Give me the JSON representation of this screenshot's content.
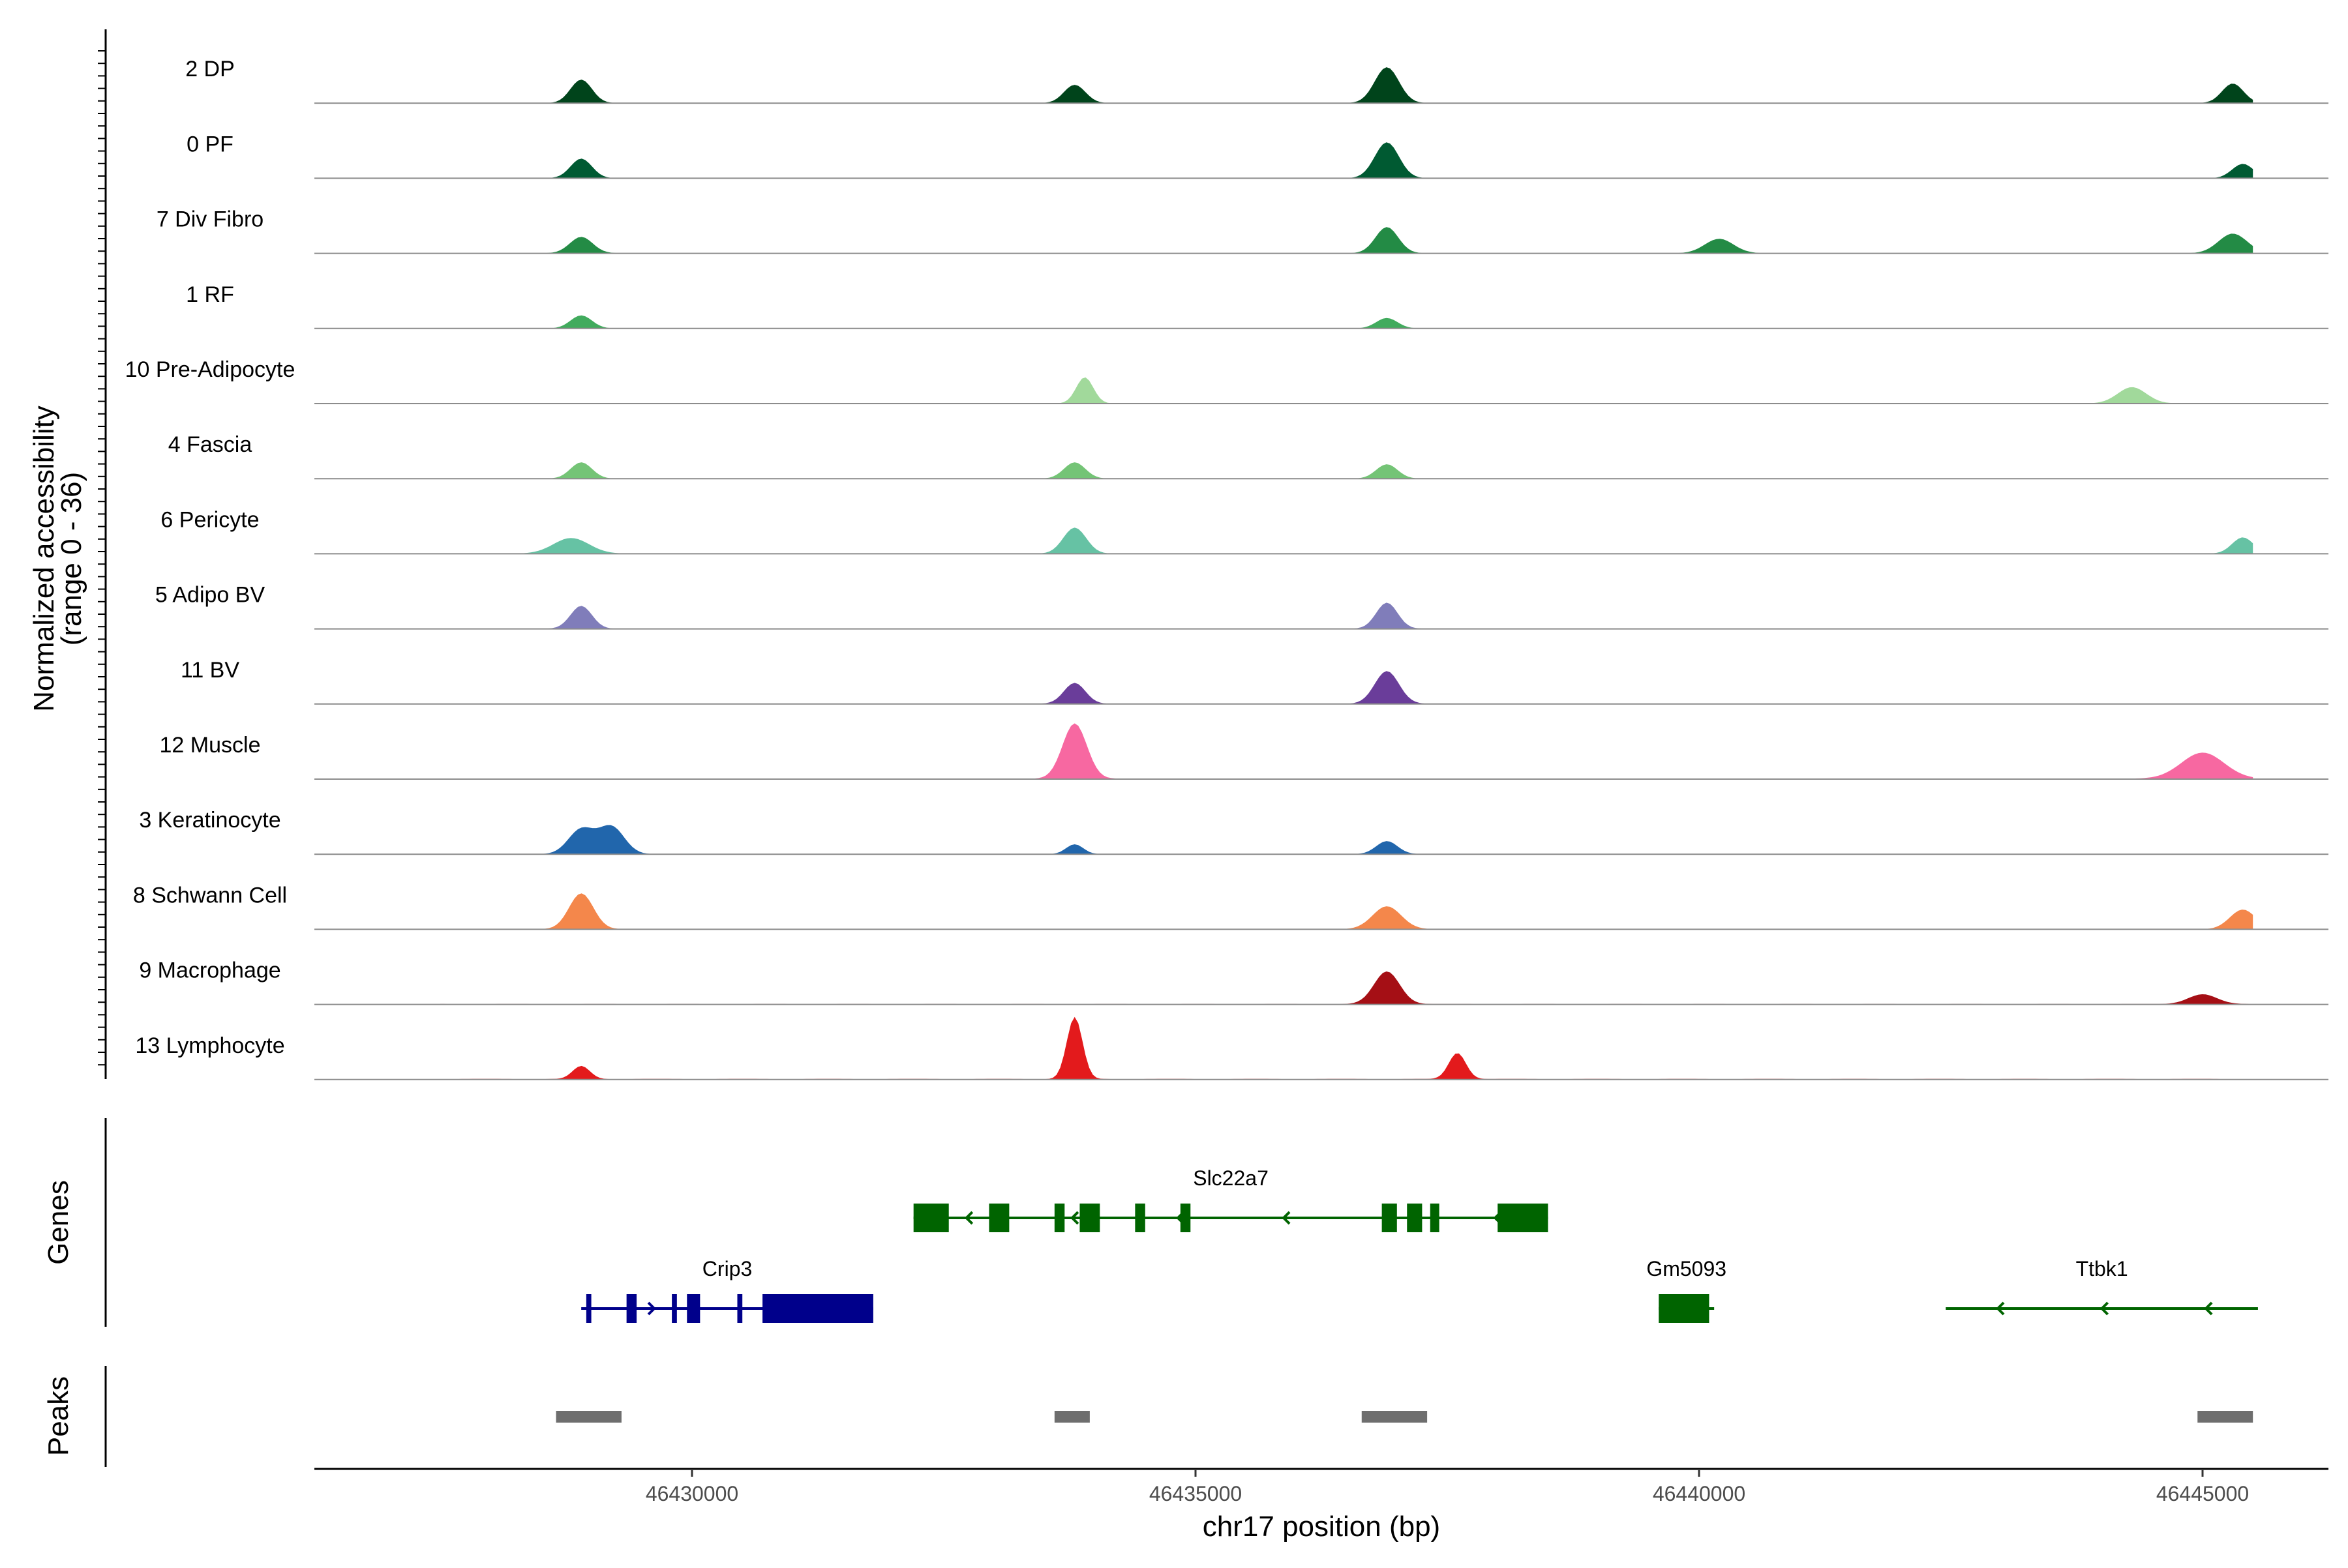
{
  "chart_data": {
    "type": "area",
    "chromosome": "chr17",
    "xlabel": "chr17 position (bp)",
    "xlim": [
      46426250,
      46446250
    ],
    "x_ticks": [
      46430000,
      46435000,
      46440000,
      46445000
    ],
    "x_tick_labels": [
      "46430000",
      "46435000",
      "46440000",
      "46445000"
    ],
    "coverage_ylabel_line1": "Normalized accessibility",
    "coverage_ylabel_line2": "(range 0 - 36)",
    "y_range": [
      0,
      36
    ],
    "region": [
      46427500,
      46445500
    ],
    "tracks": [
      {
        "name": "2 DP",
        "color": "#00441b",
        "baseline": 0.15,
        "peaks": [
          [
            46428900,
            36,
            150
          ],
          [
            46433800,
            28,
            150
          ],
          [
            46436900,
            55,
            170
          ],
          [
            46445300,
            30,
            150
          ]
        ]
      },
      {
        "name": "0 PF",
        "color": "#005a32",
        "baseline": 0.12,
        "peaks": [
          [
            46428900,
            30,
            150
          ],
          [
            46436900,
            55,
            170
          ],
          [
            46445400,
            22,
            150
          ]
        ]
      },
      {
        "name": "7 Div Fibro",
        "color": "#238b45",
        "baseline": 0.35,
        "peaks": [
          [
            46428900,
            25,
            160
          ],
          [
            46436900,
            40,
            160
          ],
          [
            46440200,
            22,
            200
          ],
          [
            46445300,
            30,
            200
          ]
        ]
      },
      {
        "name": "1 RF",
        "color": "#41ab5d",
        "baseline": 0.08,
        "peaks": [
          [
            46428900,
            20,
            150
          ],
          [
            46436900,
            16,
            150
          ]
        ]
      },
      {
        "name": "10 Pre-Adipocyte",
        "color": "#a1d99b",
        "baseline": 0.3,
        "peaks": [
          [
            46433900,
            40,
            120
          ],
          [
            46444300,
            25,
            200
          ]
        ]
      },
      {
        "name": "4 Fascia",
        "color": "#74c476",
        "baseline": 0.15,
        "peaks": [
          [
            46428900,
            25,
            150
          ],
          [
            46433800,
            25,
            150
          ],
          [
            46436900,
            22,
            150
          ]
        ]
      },
      {
        "name": "6 Pericyte",
        "color": "#66c2a4",
        "baseline": 0.25,
        "peaks": [
          [
            46428800,
            24,
            250
          ],
          [
            46433800,
            40,
            160
          ],
          [
            46445400,
            25,
            150
          ]
        ]
      },
      {
        "name": "5 Adipo BV",
        "color": "#807dba",
        "baseline": 0.35,
        "peaks": [
          [
            46428900,
            35,
            150
          ],
          [
            46436900,
            40,
            150
          ]
        ]
      },
      {
        "name": "11 BV",
        "color": "#6a3d9a",
        "baseline": 0.5,
        "peaks": [
          [
            46433800,
            32,
            150
          ],
          [
            46436900,
            50,
            170
          ]
        ]
      },
      {
        "name": "12 Muscle",
        "color": "#f768a1",
        "baseline": 0.7,
        "peaks": [
          [
            46433800,
            85,
            170
          ],
          [
            46445000,
            40,
            300
          ]
        ]
      },
      {
        "name": "3 Keratinocyte",
        "color": "#2166ac",
        "baseline": 0.2,
        "peaks": [
          [
            46428900,
            38,
            180
          ],
          [
            46429200,
            42,
            180
          ],
          [
            46433800,
            15,
            120
          ],
          [
            46436900,
            20,
            150
          ]
        ]
      },
      {
        "name": "8 Schwann Cell",
        "color": "#f4874b",
        "baseline": 0.35,
        "peaks": [
          [
            46428900,
            55,
            170
          ],
          [
            46436900,
            35,
            200
          ],
          [
            46445400,
            30,
            180
          ]
        ]
      },
      {
        "name": "9 Macrophage",
        "color": "#a50f15",
        "baseline": 0.7,
        "peaks": [
          [
            46436900,
            50,
            180
          ],
          [
            46445000,
            15,
            200
          ]
        ]
      },
      {
        "name": "13 Lymphocyte",
        "color": "#e31a1c",
        "baseline": 1.0,
        "peaks": [
          [
            46433800,
            95,
            110
          ],
          [
            46437600,
            40,
            120
          ],
          [
            46428900,
            20,
            120
          ]
        ]
      }
    ],
    "genes_label": "Genes",
    "genes": [
      {
        "name": "Slc22a7",
        "strand": "-",
        "start": 46432200,
        "end": 46438500,
        "color": "#006400",
        "row": 0,
        "exons": [
          [
            46432200,
            46432550
          ],
          [
            46432950,
            46433150
          ],
          [
            46433600,
            46433700
          ],
          [
            46433850,
            46434050
          ],
          [
            46434400,
            46434500
          ],
          [
            46434850,
            46434950
          ],
          [
            46436850,
            46437000
          ],
          [
            46437100,
            46437250
          ],
          [
            46437330,
            46437420
          ],
          [
            46438000,
            46438500
          ]
        ]
      },
      {
        "name": "Crip3",
        "strand": "+",
        "start": 46428900,
        "end": 46431800,
        "color": "#00008b",
        "row": 1,
        "exons": [
          [
            46428950,
            46429000
          ],
          [
            46429350,
            46429450
          ],
          [
            46429800,
            46429850
          ],
          [
            46429950,
            46430080
          ],
          [
            46430450,
            46430500
          ],
          [
            46430700,
            46431800
          ]
        ]
      },
      {
        "name": "Gm5093",
        "strand": "-",
        "start": 46439600,
        "end": 46440150,
        "color": "#006400",
        "row": 1,
        "exons": [
          [
            46439600,
            46440100
          ]
        ]
      },
      {
        "name": "Ttbk1",
        "strand": "-",
        "start": 46442450,
        "end": 46445550,
        "color": "#006400",
        "row": 1,
        "exons": []
      }
    ],
    "peaks_label": "Peaks",
    "peak_regions": [
      [
        46428650,
        46429300
      ],
      [
        46433600,
        46433950
      ],
      [
        46436650,
        46437300
      ],
      [
        46444950,
        46445500
      ]
    ]
  }
}
